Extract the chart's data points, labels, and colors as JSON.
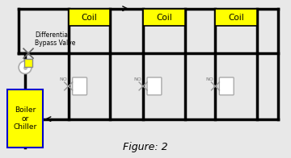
{
  "background_color": "#e8e8e8",
  "figure_caption": "Figure: 2",
  "coil_color": "#ffff00",
  "boiler_color": "#ffff00",
  "bypass_color": "#ffff00",
  "line_color": "#000000",
  "line_width": 2.0,
  "box_edge_color": "#000000",
  "boiler_edge_color": "#0000cc",
  "valve_label": "Differential\nBypass Valve",
  "coil_label": "Coil",
  "boiler_label": "Boiler\nor\nChiller",
  "no_label": "NO",
  "figure_italic": true
}
